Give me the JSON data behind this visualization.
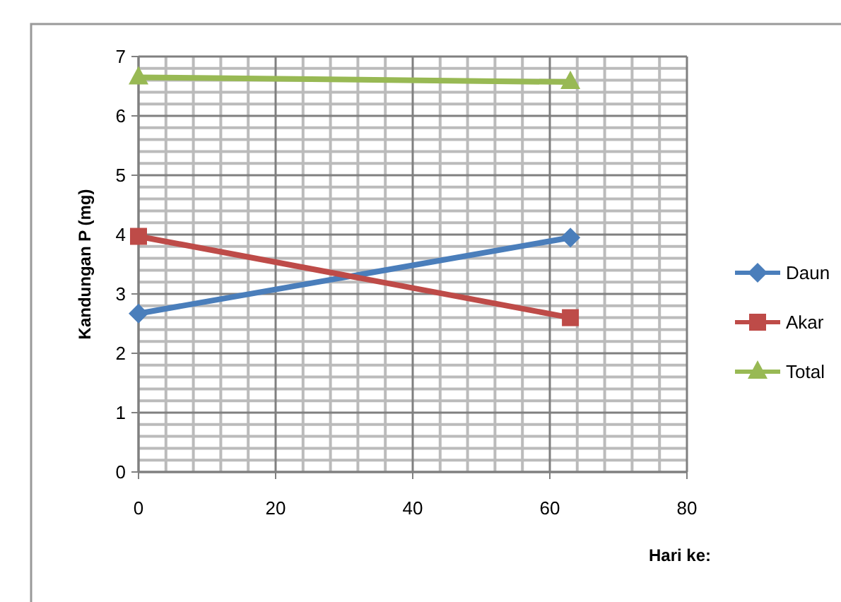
{
  "chart_data": {
    "type": "line",
    "ylabel": "Kandungan P (mg)",
    "xlabel": "Hari ke:",
    "x": [
      0,
      63
    ],
    "series": [
      {
        "name": "Daun",
        "color": "#4a7ebb",
        "values": [
          2.67,
          3.95
        ],
        "marker": "diamond"
      },
      {
        "name": "Akar",
        "color": "#be4b48",
        "values": [
          3.97,
          2.6
        ],
        "marker": "square"
      },
      {
        "name": "Total",
        "color": "#98b954",
        "values": [
          6.65,
          6.57
        ],
        "marker": "triangle"
      }
    ],
    "xlim": [
      0,
      80
    ],
    "xticks": [
      0,
      20,
      40,
      60,
      80
    ],
    "ylim": [
      0,
      7
    ],
    "yticks": [
      0,
      1,
      2,
      3,
      4,
      5,
      6,
      7
    ],
    "grid": true,
    "legend": "right"
  }
}
